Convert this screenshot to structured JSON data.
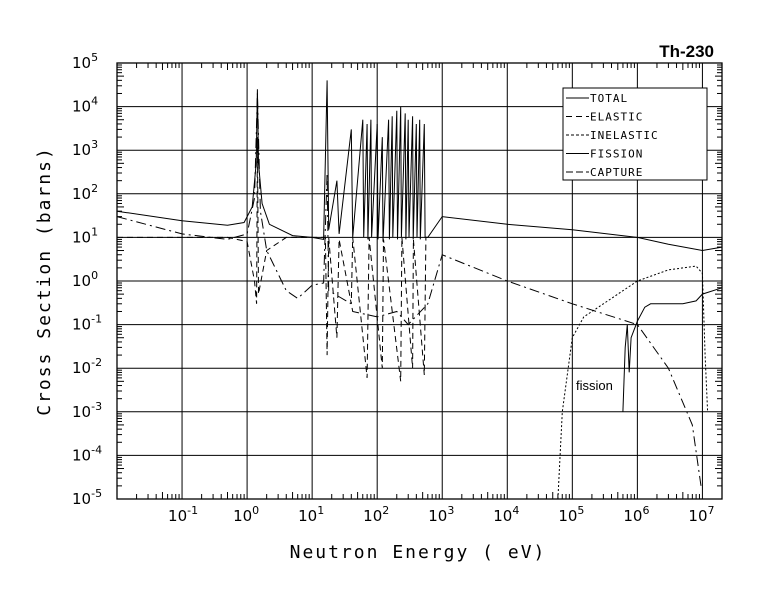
{
  "chart_data": {
    "type": "line",
    "title": "Th-230",
    "xlabel": "Neutron Energy ( eV)",
    "ylabel": "Cross Section (barns)",
    "xscale": "log",
    "yscale": "log",
    "xlim": [
      0.01,
      20000000
    ],
    "ylim": [
      1e-05,
      100000
    ],
    "grid": true,
    "legend_position": "top-right",
    "x_ticks": [
      {
        "base": "10",
        "exp": "-1",
        "v": 0.1
      },
      {
        "base": "10",
        "exp": "0",
        "v": 1
      },
      {
        "base": "10",
        "exp": "1",
        "v": 10
      },
      {
        "base": "10",
        "exp": "2",
        "v": 100
      },
      {
        "base": "10",
        "exp": "3",
        "v": 1000
      },
      {
        "base": "10",
        "exp": "4",
        "v": 10000
      },
      {
        "base": "10",
        "exp": "5",
        "v": 100000
      },
      {
        "base": "10",
        "exp": "6",
        "v": 1000000
      },
      {
        "base": "10",
        "exp": "7",
        "v": 10000000
      }
    ],
    "y_ticks": [
      {
        "base": "10",
        "exp": "5",
        "v": 100000.0
      },
      {
        "base": "10",
        "exp": "4",
        "v": 10000.0
      },
      {
        "base": "10",
        "exp": "3",
        "v": 1000.0
      },
      {
        "base": "10",
        "exp": "2",
        "v": 100.0
      },
      {
        "base": "10",
        "exp": "1",
        "v": 10
      },
      {
        "base": "10",
        "exp": "0",
        "v": 1
      },
      {
        "base": "10",
        "exp": "-1",
        "v": 0.1
      },
      {
        "base": "10",
        "exp": "-2",
        "v": 0.01
      },
      {
        "base": "10",
        "exp": "-3",
        "v": 0.001
      },
      {
        "base": "10",
        "exp": "-4",
        "v": 0.0001
      },
      {
        "base": "10",
        "exp": "-5",
        "v": 1e-05
      }
    ],
    "annotation": "fission",
    "series": [
      {
        "name": "TOTAL",
        "dash": "",
        "points": [
          [
            0.01,
            40
          ],
          [
            0.1,
            24
          ],
          [
            0.5,
            19
          ],
          [
            0.9,
            22
          ],
          [
            1.2,
            50
          ],
          [
            1.38,
            500
          ],
          [
            1.44,
            25000
          ],
          [
            1.5,
            500
          ],
          [
            1.7,
            60
          ],
          [
            2.2,
            20
          ],
          [
            5,
            11
          ],
          [
            10,
            10
          ],
          [
            15,
            9
          ],
          [
            17,
            40000
          ],
          [
            18,
            15
          ],
          [
            24,
            200
          ],
          [
            26,
            12
          ],
          [
            40,
            3000
          ],
          [
            42,
            10
          ],
          [
            60,
            5000
          ],
          [
            62,
            10
          ],
          [
            70,
            4000
          ],
          [
            72,
            9
          ],
          [
            80,
            5000
          ],
          [
            82,
            10
          ],
          [
            100,
            4000
          ],
          [
            103,
            9
          ],
          [
            120,
            2000
          ],
          [
            123,
            8
          ],
          [
            150,
            5000
          ],
          [
            154,
            9
          ],
          [
            170,
            6000
          ],
          [
            174,
            10
          ],
          [
            200,
            8000
          ],
          [
            205,
            9
          ],
          [
            230,
            10000
          ],
          [
            236,
            10
          ],
          [
            270,
            7000
          ],
          [
            276,
            9
          ],
          [
            300,
            5000
          ],
          [
            308,
            10
          ],
          [
            350,
            6000
          ],
          [
            358,
            9
          ],
          [
            400,
            4000
          ],
          [
            410,
            10
          ],
          [
            450,
            5000
          ],
          [
            460,
            9
          ],
          [
            530,
            4000
          ],
          [
            545,
            10
          ],
          [
            600,
            10
          ],
          [
            1000,
            30
          ],
          [
            10000,
            20
          ],
          [
            100000,
            15
          ],
          [
            1000000,
            10
          ],
          [
            3000000,
            7
          ],
          [
            10000000,
            5
          ],
          [
            20000000,
            6
          ]
        ]
      },
      {
        "name": "ELASTIC",
        "dash": "6,4",
        "points": [
          [
            0.01,
            10
          ],
          [
            0.5,
            10
          ],
          [
            1,
            8
          ],
          [
            1.3,
            1
          ],
          [
            1.4,
            0.3
          ],
          [
            1.44,
            2000
          ],
          [
            1.5,
            0.5
          ],
          [
            2,
            5
          ],
          [
            4,
            10
          ],
          [
            10,
            10
          ],
          [
            16,
            10
          ],
          [
            17,
            0.02
          ],
          [
            18,
            10
          ],
          [
            24,
            0.05
          ],
          [
            26,
            9
          ],
          [
            40,
            0.3
          ],
          [
            42,
            10
          ],
          [
            70,
            0.006
          ],
          [
            75,
            10
          ],
          [
            120,
            0.01
          ],
          [
            125,
            9
          ],
          [
            230,
            0.005
          ],
          [
            240,
            10
          ],
          [
            350,
            0.01
          ],
          [
            360,
            9
          ],
          [
            530,
            0.007
          ],
          [
            560,
            10
          ],
          [
            600,
            10
          ]
        ]
      },
      {
        "name": "INELASTIC",
        "dash": "2,2",
        "points": [
          [
            60000,
            1e-05
          ],
          [
            70000,
            0.001
          ],
          [
            100000,
            0.05
          ],
          [
            150000,
            0.15
          ],
          [
            300000,
            0.3
          ],
          [
            1000000,
            1
          ],
          [
            3000000,
            1.8
          ],
          [
            8000000,
            2.2
          ],
          [
            10000000,
            1.5
          ],
          [
            11000000,
            0.02
          ],
          [
            12000000,
            0.001
          ]
        ]
      },
      {
        "name": "FISSION",
        "dash": "",
        "points": [
          [
            600000,
            0.001
          ],
          [
            650000,
            0.03
          ],
          [
            700000,
            0.1
          ],
          [
            750000,
            0.008
          ],
          [
            800000,
            0.05
          ],
          [
            1000000,
            0.12
          ],
          [
            1300000,
            0.25
          ],
          [
            1600000,
            0.3
          ],
          [
            2500000,
            0.3
          ],
          [
            5000000,
            0.3
          ],
          [
            8000000,
            0.35
          ],
          [
            10000000,
            0.5
          ],
          [
            20000000,
            0.7
          ]
        ]
      },
      {
        "name": "CAPTURE",
        "dash": "10,4,2,4",
        "points": [
          [
            0.01,
            30
          ],
          [
            0.1,
            12
          ],
          [
            0.5,
            9
          ],
          [
            1,
            12
          ],
          [
            1.3,
            80
          ],
          [
            1.44,
            20000
          ],
          [
            1.6,
            40
          ],
          [
            2,
            5
          ],
          [
            4,
            0.6
          ],
          [
            6,
            0.4
          ],
          [
            10,
            0.8
          ],
          [
            15,
            0.9
          ],
          [
            17,
            300
          ],
          [
            18,
            0.6
          ],
          [
            40,
            0.3
          ],
          [
            42,
            0.2
          ],
          [
            100,
            0.15
          ],
          [
            200,
            0.2
          ],
          [
            300,
            0.1
          ],
          [
            600,
            0.3
          ],
          [
            1000,
            4
          ],
          [
            10000,
            1
          ],
          [
            100000,
            0.3
          ],
          [
            1000000,
            0.1
          ],
          [
            3000000,
            0.01
          ],
          [
            7000000,
            0.0005
          ],
          [
            9500000,
            2e-05
          ]
        ]
      }
    ]
  }
}
